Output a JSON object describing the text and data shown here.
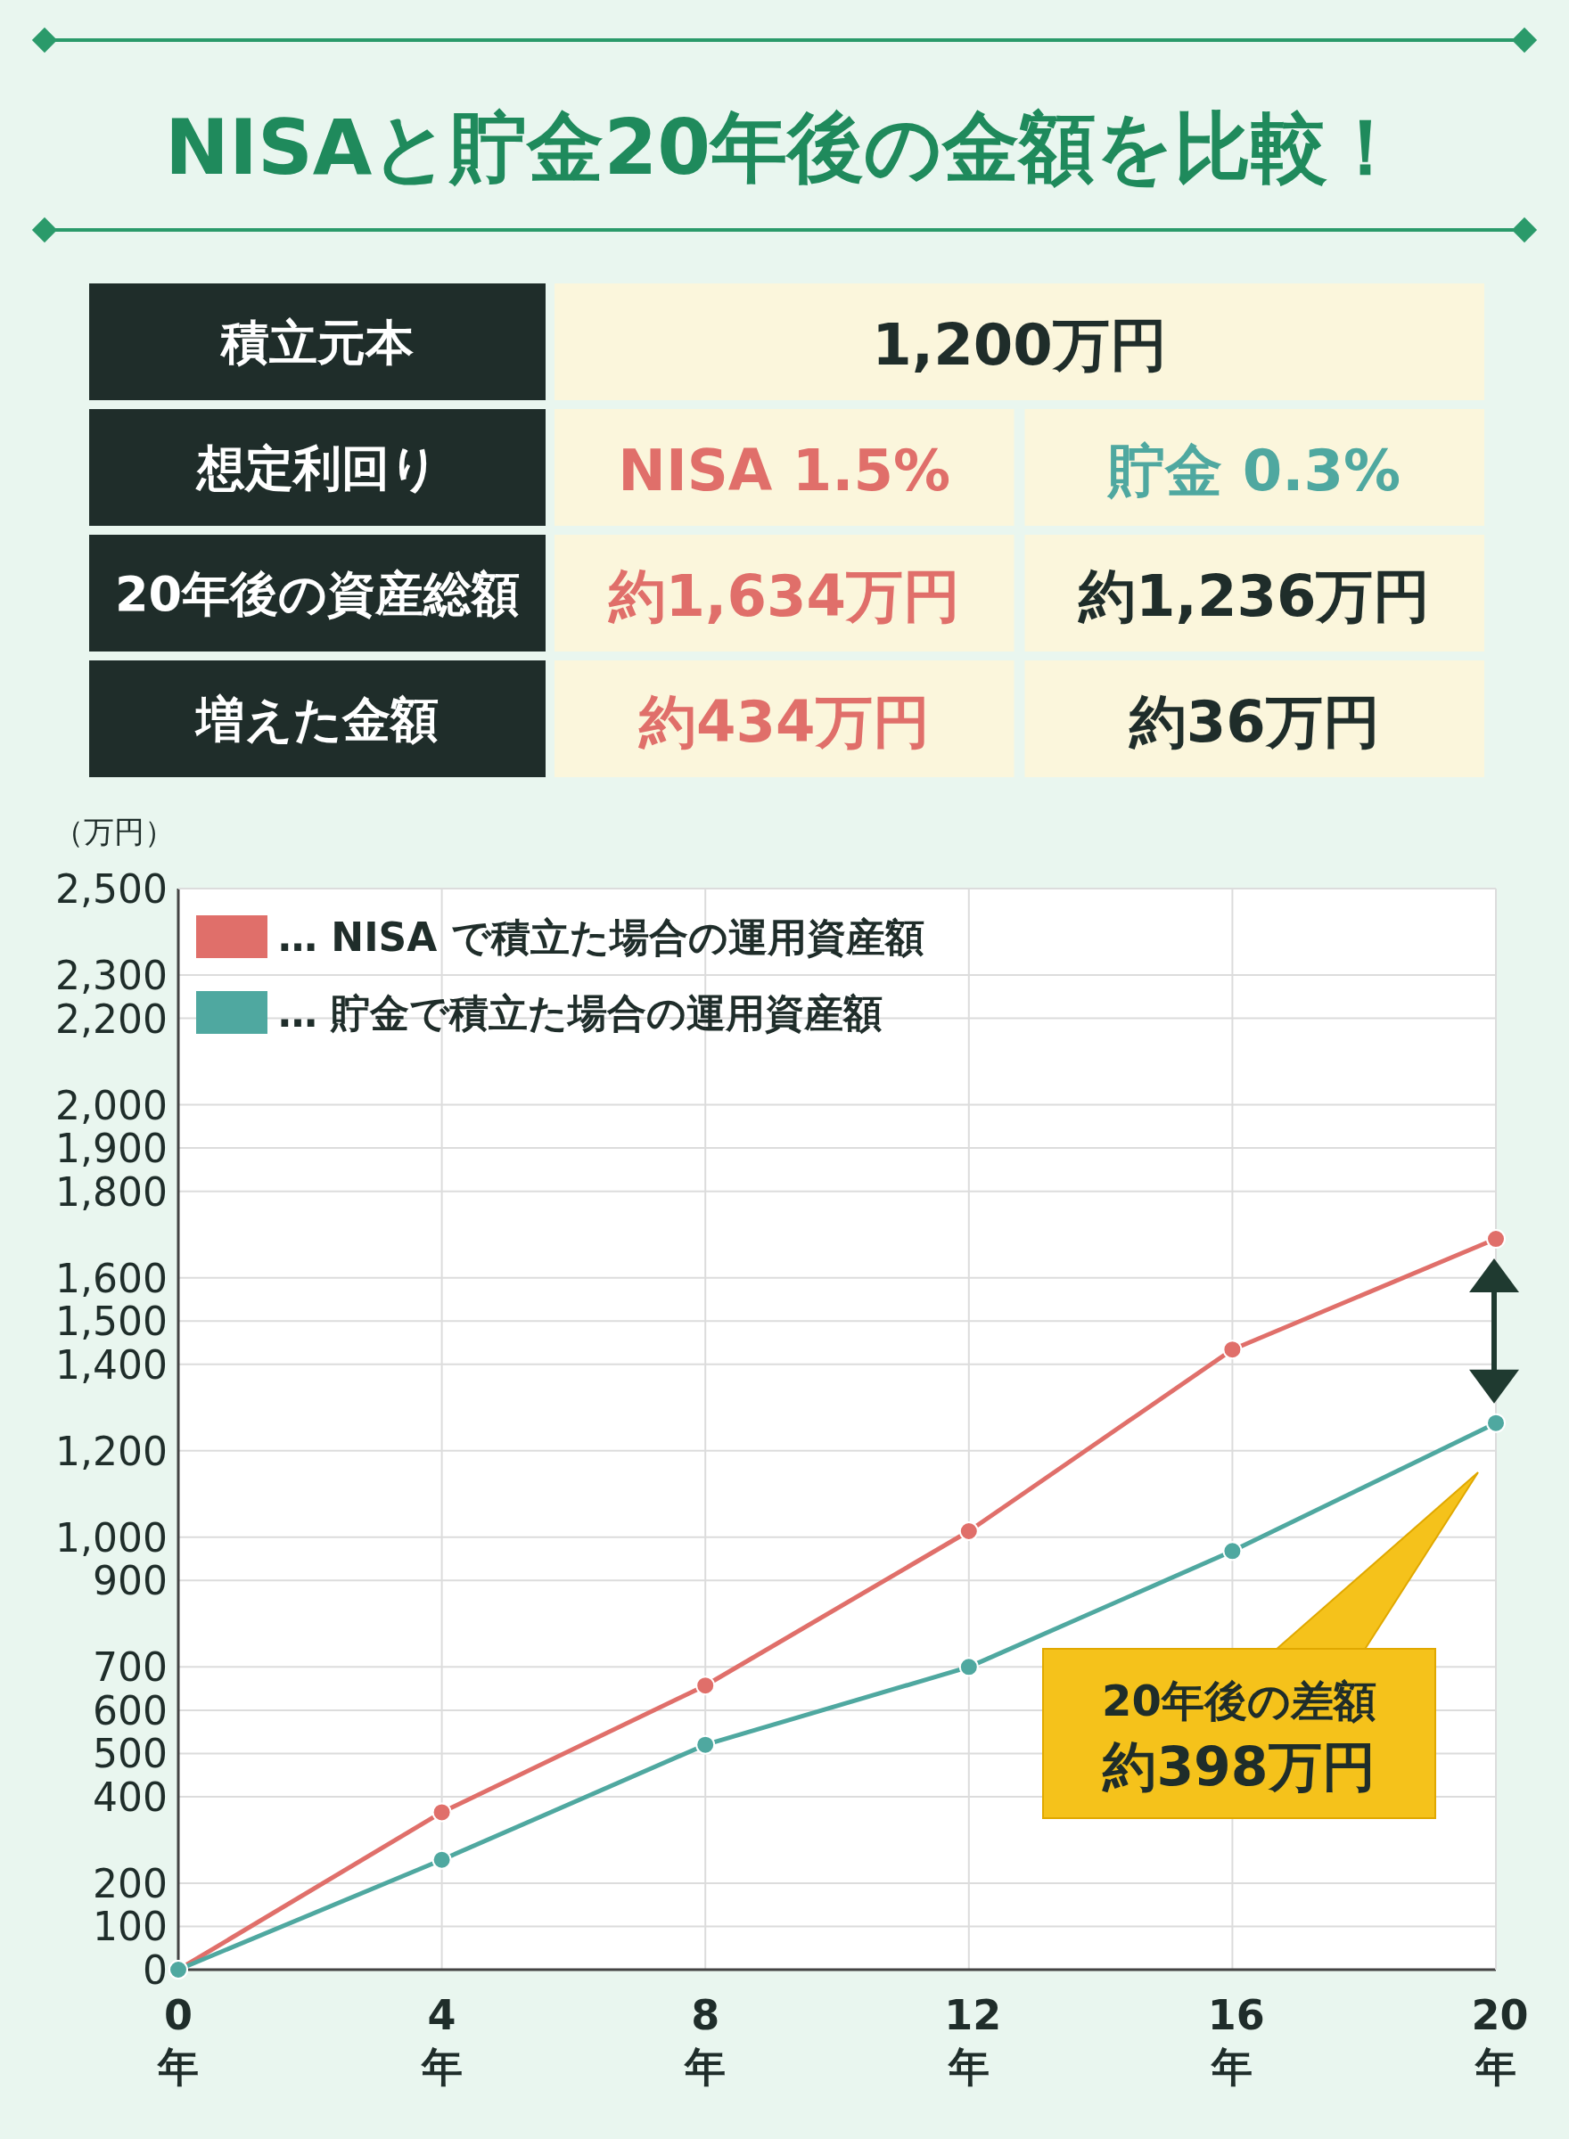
{
  "chart_data": [
    {
      "type": "other",
      "title": "NISAと貯金20年後の金額を比較！",
      "annotations": [
        "積立元本",
        "1,200万円",
        "想定利回り",
        "NISA 1.5%",
        "貯金 0.3%",
        "20年後の資産総額",
        "約1,634万円",
        "約1,236万円",
        "増えた金額",
        "約434万円",
        "約36万円"
      ]
    },
    {
      "type": "line",
      "ylabel": "（万円）",
      "x": [
        0,
        4,
        8,
        12,
        16,
        20
      ],
      "xlim": [
        0,
        20
      ],
      "xticks": [
        {
          "value": 0,
          "label": "0年"
        },
        {
          "value": 4,
          "label": "4年"
        },
        {
          "value": 8,
          "label": "8年"
        },
        {
          "value": 12,
          "label": "12年"
        },
        {
          "value": 16,
          "label": "16年"
        },
        {
          "value": 20,
          "label": "20年"
        }
      ],
      "ylim": [
        0,
        2500
      ],
      "yticks": [
        0,
        100,
        200,
        400,
        500,
        600,
        700,
        900,
        {
          "value": 1000,
          "label": "1,000"
        },
        {
          "value": 1200,
          "label": "1,200"
        },
        {
          "value": 1400,
          "label": "1,400"
        },
        {
          "value": 1500,
          "label": "1,500"
        },
        {
          "value": 1600,
          "label": "1,600"
        },
        {
          "value": 1800,
          "label": "1,800"
        },
        {
          "value": 1900,
          "label": "1,900"
        },
        {
          "value": 2000,
          "label": "2,000"
        },
        {
          "value": 2200,
          "label": "2,200"
        },
        {
          "value": 2300,
          "label": "2,300"
        },
        {
          "value": 2500,
          "label": "2,500"
        }
      ],
      "series": [
        {
          "name": "… NISA で積立た場合の運用資産額",
          "color": "#e06f6a",
          "values": [
            0,
            364,
            657,
            1014,
            1434,
            1690
          ]
        },
        {
          "name": "… 貯金で積立た場合の運用資産額",
          "color": "#4fa8a0",
          "values": [
            0,
            254,
            520,
            700,
            968,
            1264
          ]
        }
      ],
      "marker": "circle",
      "grid": true,
      "legend": "top left",
      "annotations": [
        "20年後の差額",
        "約398万円"
      ]
    }
  ]
}
